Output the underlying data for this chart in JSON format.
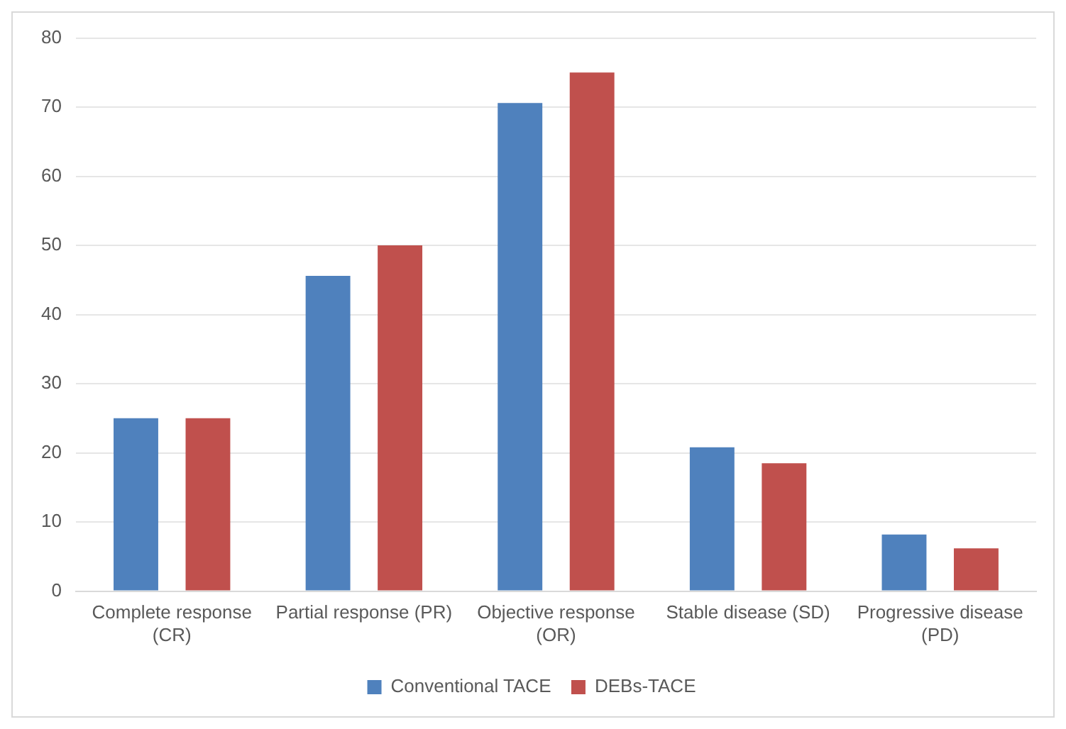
{
  "chart_data": {
    "type": "bar",
    "categories": [
      "Complete response (CR)",
      "Partial response (PR)",
      "Objective response (OR)",
      "Stable disease (SD)",
      "Progressive disease (PD)"
    ],
    "series": [
      {
        "name": "Conventional TACE",
        "color": "#4f81bd",
        "values": [
          25,
          45.6,
          70.6,
          20.8,
          8.2
        ]
      },
      {
        "name": "DEBs-TACE",
        "color": "#c0504d",
        "values": [
          25,
          50,
          75,
          18.5,
          6.2
        ]
      }
    ],
    "ylim": [
      0,
      80
    ],
    "yticks": [
      0,
      10,
      20,
      30,
      40,
      50,
      60,
      70,
      80
    ],
    "grid": "y",
    "legend": "bottom"
  }
}
